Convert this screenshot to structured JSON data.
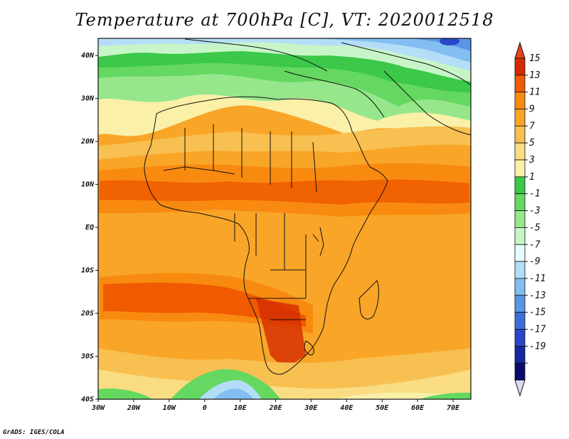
{
  "title": "Temperature at 700hPa [C], VT: 2020012518",
  "footer": "GrADS: IGES/COLA",
  "map": {
    "lon_labels": [
      "30W",
      "20W",
      "10W",
      "0",
      "10E",
      "20E",
      "30E",
      "40E",
      "50E",
      "60E",
      "70E"
    ],
    "lat_labels": [
      "40N",
      "30N",
      "20N",
      "10N",
      "EQ",
      "10S",
      "20S",
      "30S",
      "40S"
    ],
    "lon_range": [
      -30,
      75
    ],
    "lat_range": [
      -40,
      44
    ]
  },
  "colorbar": {
    "labels": [
      "15",
      "13",
      "11",
      "9",
      "7",
      "5",
      "3",
      "1",
      "-1",
      "-3",
      "-5",
      "-7",
      "-9",
      "-11",
      "-13",
      "-15",
      "-17",
      "-19"
    ],
    "colors": [
      "#d42a00",
      "#f05a00",
      "#f88a10",
      "#f8a528",
      "#f8c050",
      "#fadc82",
      "#faf0a8",
      "#3cc848",
      "#64d860",
      "#96e68c",
      "#c8f5c8",
      "#e6fbfb",
      "#b4def8",
      "#82bef0",
      "#5a96e6",
      "#3c6ed8",
      "#2846c8",
      "#1428a0",
      "#0a0a6e"
    ],
    "top_arrow": "#e8401c",
    "bottom_arrow": "#dcdcf8"
  }
}
